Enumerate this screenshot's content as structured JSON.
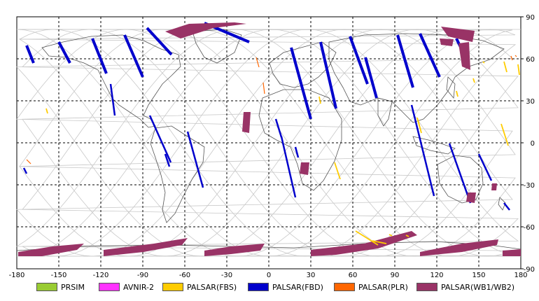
{
  "map": {
    "lon_ticks": [
      "-180",
      "-150",
      "-120",
      "-90",
      "-60",
      "-30",
      "0",
      "30",
      "60",
      "90",
      "120",
      "150",
      "180"
    ],
    "lat_ticks": [
      "90",
      "60",
      "30",
      "0",
      "-30",
      "-60",
      "-90"
    ],
    "background": "#ffffff",
    "grid_color": "#000000",
    "orbit_color": "#c8c8c8",
    "coast_color": "#555555"
  },
  "legend": [
    {
      "label": "PRSIM",
      "color": "#99cc33"
    },
    {
      "label": "AVNIR-2",
      "color": "#ff33ff"
    },
    {
      "label": "PALSAR(FBS)",
      "color": "#ffcc00"
    },
    {
      "label": "PALSAR(FBD)",
      "color": "#0000cc"
    },
    {
      "label": "PALSAR(PLR)",
      "color": "#ff6600"
    },
    {
      "label": "PALSAR(WB1/WB2)",
      "color": "#993366"
    }
  ]
}
